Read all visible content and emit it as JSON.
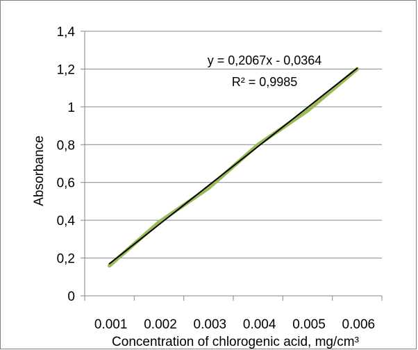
{
  "chart_data": {
    "type": "line",
    "title": "",
    "xlabel": "Concentration of chlorogenic acid, mg/cm³",
    "ylabel": "Absorbance",
    "categories": [
      "0.001",
      "0.002",
      "0.003",
      "0.004",
      "0.005",
      "0.006"
    ],
    "x": [
      1,
      2,
      3,
      4,
      5,
      6
    ],
    "xlim": [
      0.5,
      6.5
    ],
    "ylim": [
      0,
      1.4
    ],
    "y_ticks": [
      0,
      0.2,
      0.4,
      0.6,
      0.8,
      1.0,
      1.2,
      1.4
    ],
    "y_tick_labels": [
      "0",
      "0,2",
      "0,4",
      "0,6",
      "0,8",
      "1",
      "1,2",
      "1,4"
    ],
    "grid": true,
    "legend": "none",
    "series": [
      {
        "values": [
          0.16,
          0.39,
          0.57,
          0.8,
          0.98,
          1.2
        ],
        "color": "#9bbb59",
        "style": "data-line"
      },
      {
        "values": [
          0.1703,
          0.377,
          0.5837,
          0.7904,
          0.9971,
          1.2038
        ],
        "color": "#000000",
        "style": "linear-trendline"
      }
    ],
    "annotations": {
      "equation": "y = 0,2067x - 0,0364",
      "r_squared": "R² = 0,9985"
    }
  }
}
